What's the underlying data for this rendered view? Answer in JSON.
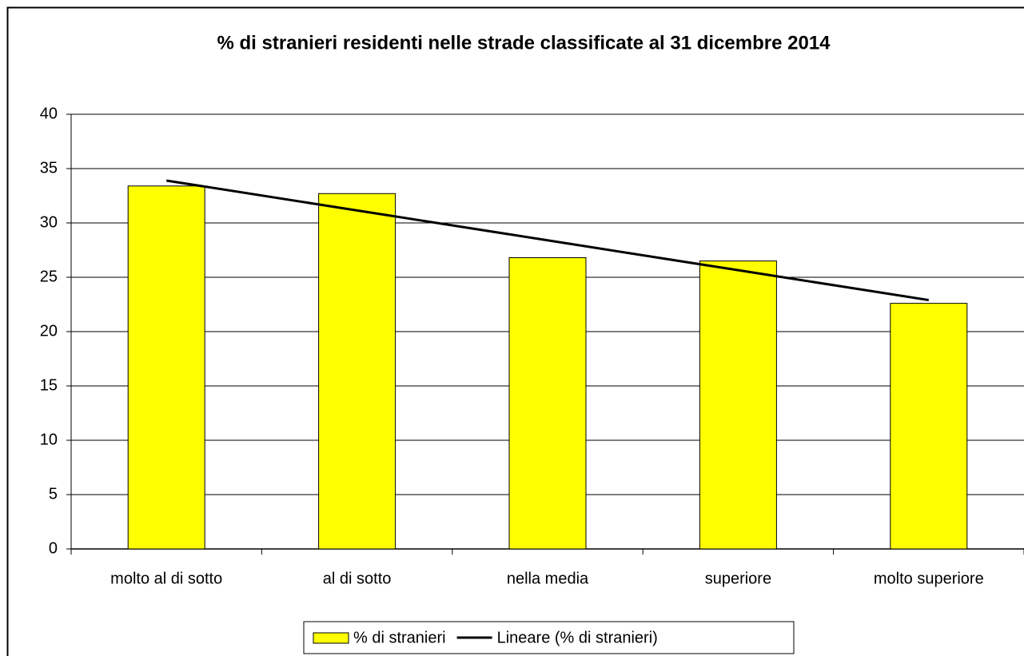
{
  "chart_data": {
    "type": "bar",
    "title": "% di stranieri residenti nelle strade classificate al 31 dicembre 2014",
    "categories": [
      "molto al di sotto",
      "al di sotto",
      "nella media",
      "superiore",
      "molto superiore"
    ],
    "series": [
      {
        "name": "% di stranieri",
        "type": "bar",
        "color": "#ffff00",
        "values": [
          33.4,
          32.7,
          26.8,
          26.5,
          22.6
        ]
      },
      {
        "name": "Lineare (% di stranieri)",
        "type": "line",
        "color": "#000000",
        "values": [
          33.9,
          31.15,
          28.4,
          25.65,
          22.9
        ]
      }
    ],
    "ylim": [
      0,
      40
    ],
    "yticks": [
      0,
      5,
      10,
      15,
      20,
      25,
      30,
      35,
      40
    ],
    "grid": true,
    "legend": "bottom"
  }
}
